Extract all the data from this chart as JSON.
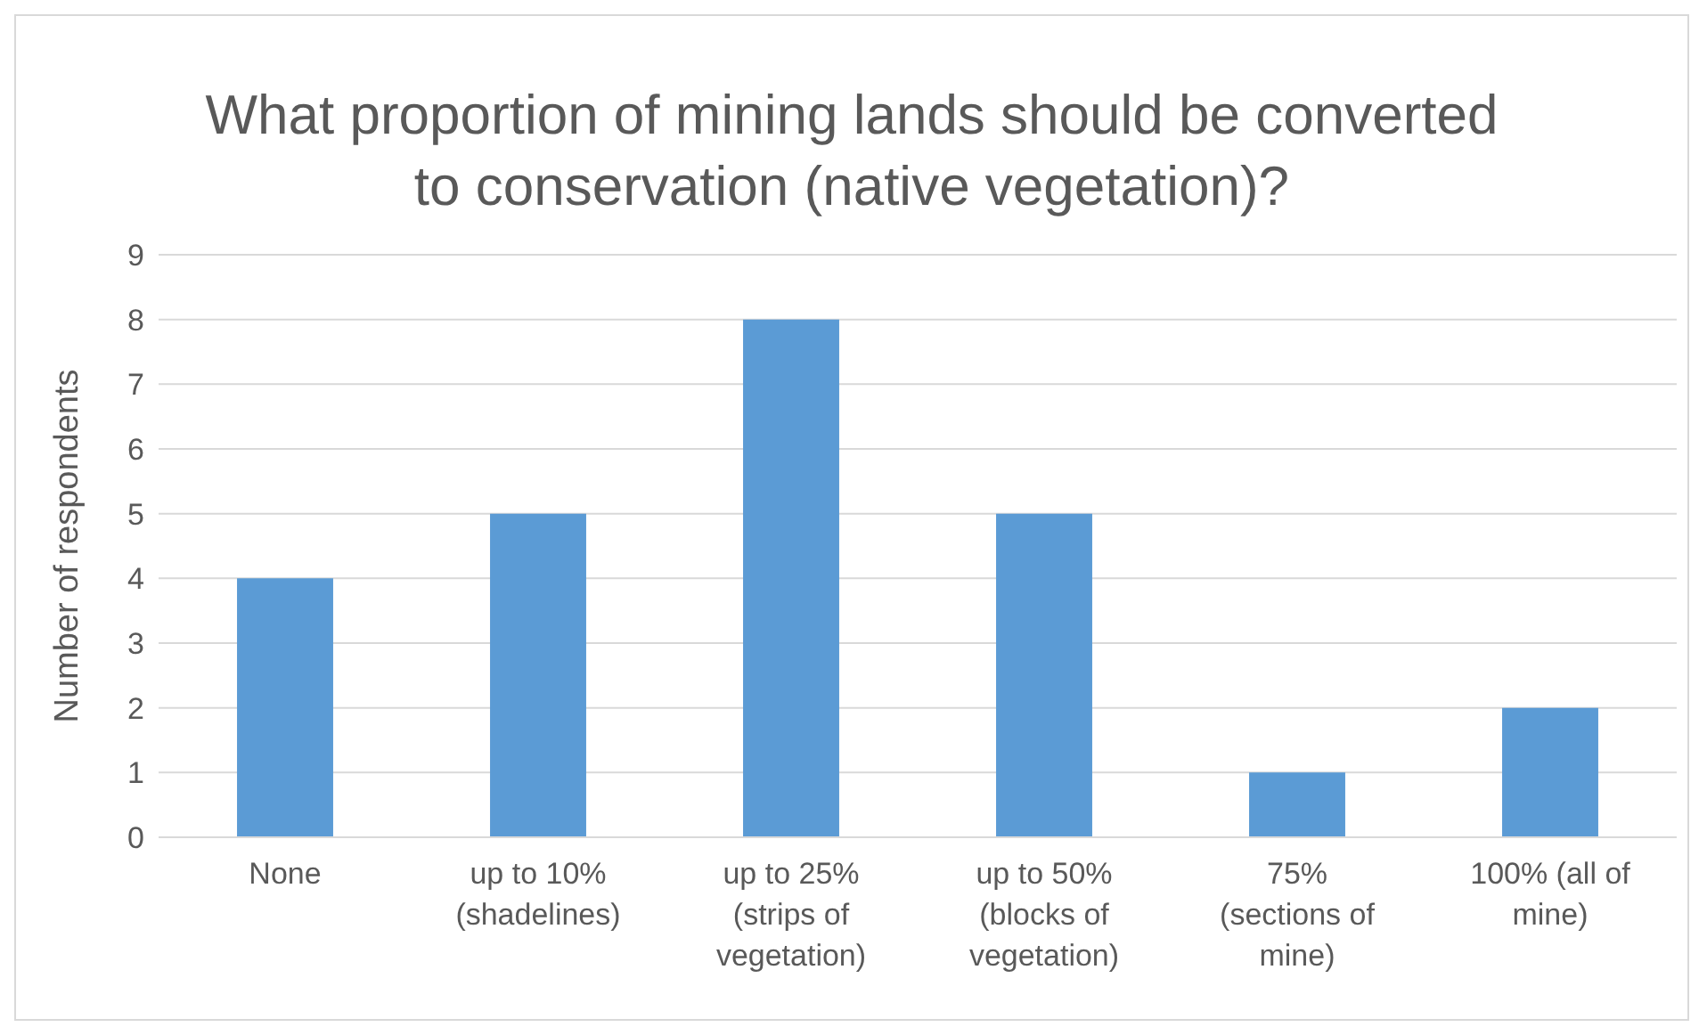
{
  "chart_data": {
    "type": "bar",
    "title": "What proportion of mining lands should be converted to conservation (native vegetation)?",
    "ylabel": "Number of respondents",
    "categories": [
      "None",
      "up to 10% (shadelines)",
      "up to 25% (strips of vegetation)",
      "up to 50% (blocks of vegetation)",
      "75% (sections of mine)",
      "100% (all of mine)"
    ],
    "values": [
      4,
      5,
      8,
      5,
      1,
      2
    ],
    "color": "#5b9bd5",
    "ylim": [
      0,
      9
    ],
    "yticks": [
      0,
      1,
      2,
      3,
      4,
      5,
      6,
      7,
      8,
      9
    ],
    "grid": "y",
    "legend": false
  }
}
